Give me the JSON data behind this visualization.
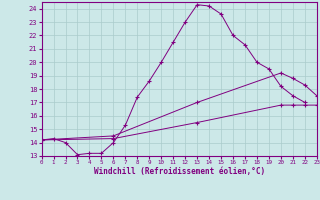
{
  "xlabel": "Windchill (Refroidissement éolien,°C)",
  "background_color": "#cce8e8",
  "line_color": "#800080",
  "grid_color": "#aacccc",
  "xlim": [
    0,
    23
  ],
  "ylim": [
    13,
    24.5
  ],
  "yticks": [
    13,
    14,
    15,
    16,
    17,
    18,
    19,
    20,
    21,
    22,
    23,
    24
  ],
  "xticks": [
    0,
    1,
    2,
    3,
    4,
    5,
    6,
    7,
    8,
    9,
    10,
    11,
    12,
    13,
    14,
    15,
    16,
    17,
    18,
    19,
    20,
    21,
    22,
    23
  ],
  "series": [
    {
      "x": [
        0,
        1,
        2,
        3,
        4,
        5,
        6,
        7,
        8,
        9,
        10,
        11,
        12,
        13,
        14,
        15,
        16,
        17,
        18,
        19,
        20,
        21,
        22
      ],
      "y": [
        14.2,
        14.3,
        14.0,
        13.1,
        13.2,
        13.2,
        14.0,
        15.3,
        17.4,
        18.6,
        20.0,
        21.5,
        23.0,
        24.3,
        24.2,
        23.6,
        22.0,
        21.3,
        20.0,
        19.5,
        18.2,
        17.5,
        17.0
      ]
    },
    {
      "x": [
        0,
        6,
        13,
        20,
        21,
        22,
        23
      ],
      "y": [
        14.2,
        14.5,
        17.0,
        19.2,
        18.8,
        18.3,
        17.5
      ]
    },
    {
      "x": [
        0,
        6,
        13,
        20,
        21,
        22,
        23
      ],
      "y": [
        14.2,
        14.3,
        15.5,
        16.8,
        16.8,
        16.8,
        16.8
      ]
    }
  ]
}
